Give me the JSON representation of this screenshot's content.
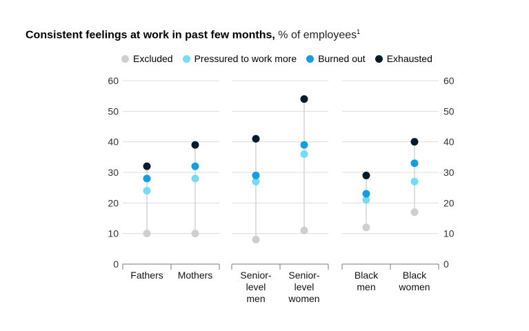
{
  "title": {
    "bold": "Consistent feelings at work in past few months,",
    "light": "% of employees",
    "footnote": "1"
  },
  "legend": [
    {
      "name": "Excluded",
      "color": "#cfcfcf"
    },
    {
      "name": "Pressured to work more",
      "color": "#74dcf7"
    },
    {
      "name": "Burned out",
      "color": "#139fdf"
    },
    {
      "name": "Exhausted",
      "color": "#051c2c"
    }
  ],
  "chart_data": {
    "type": "scatter",
    "ylim": [
      0,
      60
    ],
    "yticks": [
      0,
      10,
      20,
      30,
      40,
      50,
      60
    ],
    "grid": true,
    "legend_position": "top",
    "groups": [
      {
        "categories": [
          [
            "Fathers"
          ],
          [
            "Mothers"
          ]
        ]
      },
      {
        "categories": [
          [
            "Senior-",
            "level",
            "men"
          ],
          [
            "Senior-",
            "level",
            "women"
          ]
        ]
      },
      {
        "categories": [
          [
            "Black",
            "men"
          ],
          [
            "Black",
            "women"
          ]
        ]
      }
    ],
    "series": [
      {
        "name": "Excluded",
        "values": [
          10,
          10,
          8,
          11,
          12,
          17
        ]
      },
      {
        "name": "Pressured to work more",
        "values": [
          24,
          28,
          27,
          36,
          21,
          27
        ]
      },
      {
        "name": "Burned out",
        "values": [
          28,
          32,
          29,
          39,
          23,
          33
        ]
      },
      {
        "name": "Exhausted",
        "values": [
          32,
          39,
          41,
          54,
          29,
          40
        ]
      }
    ]
  }
}
